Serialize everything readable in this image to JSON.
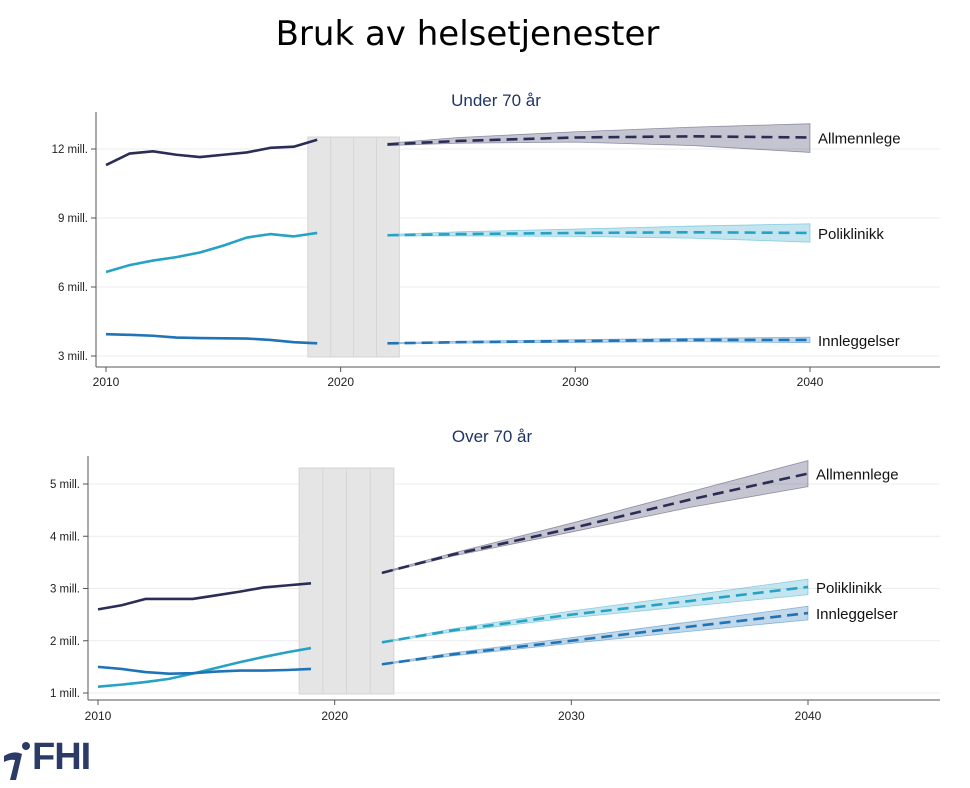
{
  "page": {
    "title": "Bruk av helsetjenester"
  },
  "logo": {
    "text": "FHI"
  },
  "colors": {
    "allmennlege": "#2a2d55",
    "poliklinikk": "#26a3c4",
    "innleggelser": "#1f73b7"
  },
  "chart_data": [
    {
      "type": "line",
      "title": "Under 70 år",
      "xlim": [
        2010,
        2045
      ],
      "ylim": [
        2800000,
        13500000
      ],
      "x_ticks": [
        2010,
        2020,
        2030,
        2040
      ],
      "x_tick_labels": [
        "2010",
        "2020",
        "2030",
        "2040"
      ],
      "y_ticks": [
        3000000,
        6000000,
        9000000,
        12000000
      ],
      "y_tick_labels": [
        "3 mill.",
        "6 mill.",
        "9 mill.",
        "12 mill."
      ],
      "shaded_x_range": [
        2018.6,
        2022.5
      ],
      "grid": true,
      "series": [
        {
          "name": "Allmennlege",
          "color": "#2a2d55",
          "historical": {
            "x": [
              2010,
              2011,
              2012,
              2013,
              2014,
              2015,
              2016,
              2017,
              2018,
              2019
            ],
            "y": [
              11300000,
              11800000,
              11900000,
              11750000,
              11650000,
              11750000,
              11850000,
              12050000,
              12100000,
              12400000
            ]
          },
          "projection": {
            "x": [
              2022,
              2025,
              2030,
              2035,
              2040
            ],
            "y": [
              12200000,
              12350000,
              12500000,
              12550000,
              12500000
            ]
          },
          "ci_upper": [
            12250000,
            12500000,
            12750000,
            12950000,
            13100000
          ],
          "ci_lower": [
            12150000,
            12250000,
            12300000,
            12150000,
            11850000
          ]
        },
        {
          "name": "Poliklinikk",
          "color": "#26a3c4",
          "historical": {
            "x": [
              2010,
              2011,
              2012,
              2013,
              2014,
              2015,
              2016,
              2017,
              2018,
              2019
            ],
            "y": [
              6650000,
              6950000,
              7150000,
              7300000,
              7500000,
              7800000,
              8150000,
              8300000,
              8200000,
              8350000
            ]
          },
          "projection": {
            "x": [
              2022,
              2025,
              2030,
              2035,
              2040
            ],
            "y": [
              8250000,
              8300000,
              8350000,
              8380000,
              8350000
            ]
          },
          "ci_upper": [
            8280000,
            8400000,
            8520000,
            8650000,
            8750000
          ],
          "ci_lower": [
            8220000,
            8220000,
            8200000,
            8120000,
            7950000
          ]
        },
        {
          "name": "Innleggelser",
          "color": "#1f73b7",
          "historical": {
            "x": [
              2010,
              2011,
              2012,
              2013,
              2014,
              2015,
              2016,
              2017,
              2018,
              2019
            ],
            "y": [
              3950000,
              3920000,
              3880000,
              3800000,
              3780000,
              3770000,
              3760000,
              3700000,
              3600000,
              3550000
            ]
          },
          "projection": {
            "x": [
              2022,
              2025,
              2030,
              2035,
              2040
            ],
            "y": [
              3550000,
              3600000,
              3650000,
              3700000,
              3700000
            ]
          },
          "ci_upper": [
            3570000,
            3640000,
            3710000,
            3770000,
            3820000
          ],
          "ci_lower": [
            3530000,
            3560000,
            3590000,
            3620000,
            3580000
          ]
        }
      ]
    },
    {
      "type": "line",
      "title": "Over 70 år",
      "xlim": [
        2010,
        2045
      ],
      "ylim": [
        900000,
        5550000
      ],
      "x_ticks": [
        2010,
        2020,
        2030,
        2040
      ],
      "x_tick_labels": [
        "2010",
        "2020",
        "2030",
        "2040"
      ],
      "y_ticks": [
        1000000,
        2000000,
        3000000,
        4000000,
        5000000
      ],
      "y_tick_labels": [
        "1 mill.",
        "2 mill.",
        "3 mill.",
        "4 mill.",
        "5 mill."
      ],
      "shaded_x_range": [
        2018.5,
        2022.5
      ],
      "grid": true,
      "series": [
        {
          "name": "Allmennlege",
          "color": "#2a2d55",
          "historical": {
            "x": [
              2010,
              2011,
              2012,
              2013,
              2014,
              2015,
              2016,
              2017,
              2018,
              2019
            ],
            "y": [
              2600000,
              2680000,
              2800000,
              2800000,
              2800000,
              2870000,
              2940000,
              3020000,
              3060000,
              3100000
            ]
          },
          "projection": {
            "x": [
              2022,
              2025,
              2030,
              2035,
              2040
            ],
            "y": [
              3300000,
              3650000,
              4150000,
              4700000,
              5200000
            ]
          },
          "ci_upper": [
            3310000,
            3680000,
            4250000,
            4850000,
            5450000
          ],
          "ci_lower": [
            3290000,
            3620000,
            4080000,
            4550000,
            4950000
          ]
        },
        {
          "name": "Poliklinikk",
          "color": "#26a3c4",
          "historical": {
            "x": [
              2010,
              2011,
              2012,
              2013,
              2014,
              2015,
              2016,
              2017,
              2018,
              2019
            ],
            "y": [
              1120000,
              1160000,
              1210000,
              1270000,
              1370000,
              1480000,
              1590000,
              1690000,
              1780000,
              1860000
            ]
          },
          "projection": {
            "x": [
              2022,
              2025,
              2030,
              2035,
              2040
            ],
            "y": [
              1970000,
              2200000,
              2500000,
              2760000,
              3030000
            ]
          },
          "ci_upper": [
            1980000,
            2230000,
            2570000,
            2870000,
            3180000
          ],
          "ci_lower": [
            1960000,
            2170000,
            2440000,
            2660000,
            2880000
          ]
        },
        {
          "name": "Innleggelser",
          "color": "#1f73b7",
          "historical": {
            "x": [
              2010,
              2011,
              2012,
              2013,
              2014,
              2015,
              2016,
              2017,
              2018,
              2019
            ],
            "y": [
              1500000,
              1460000,
              1400000,
              1370000,
              1380000,
              1410000,
              1430000,
              1430000,
              1440000,
              1460000
            ]
          },
          "projection": {
            "x": [
              2022,
              2025,
              2030,
              2035,
              2040
            ],
            "y": [
              1550000,
              1740000,
              2000000,
              2270000,
              2530000
            ]
          },
          "ci_upper": [
            1560000,
            1770000,
            2060000,
            2360000,
            2660000
          ],
          "ci_lower": [
            1540000,
            1710000,
            1950000,
            2180000,
            2400000
          ]
        }
      ]
    }
  ]
}
